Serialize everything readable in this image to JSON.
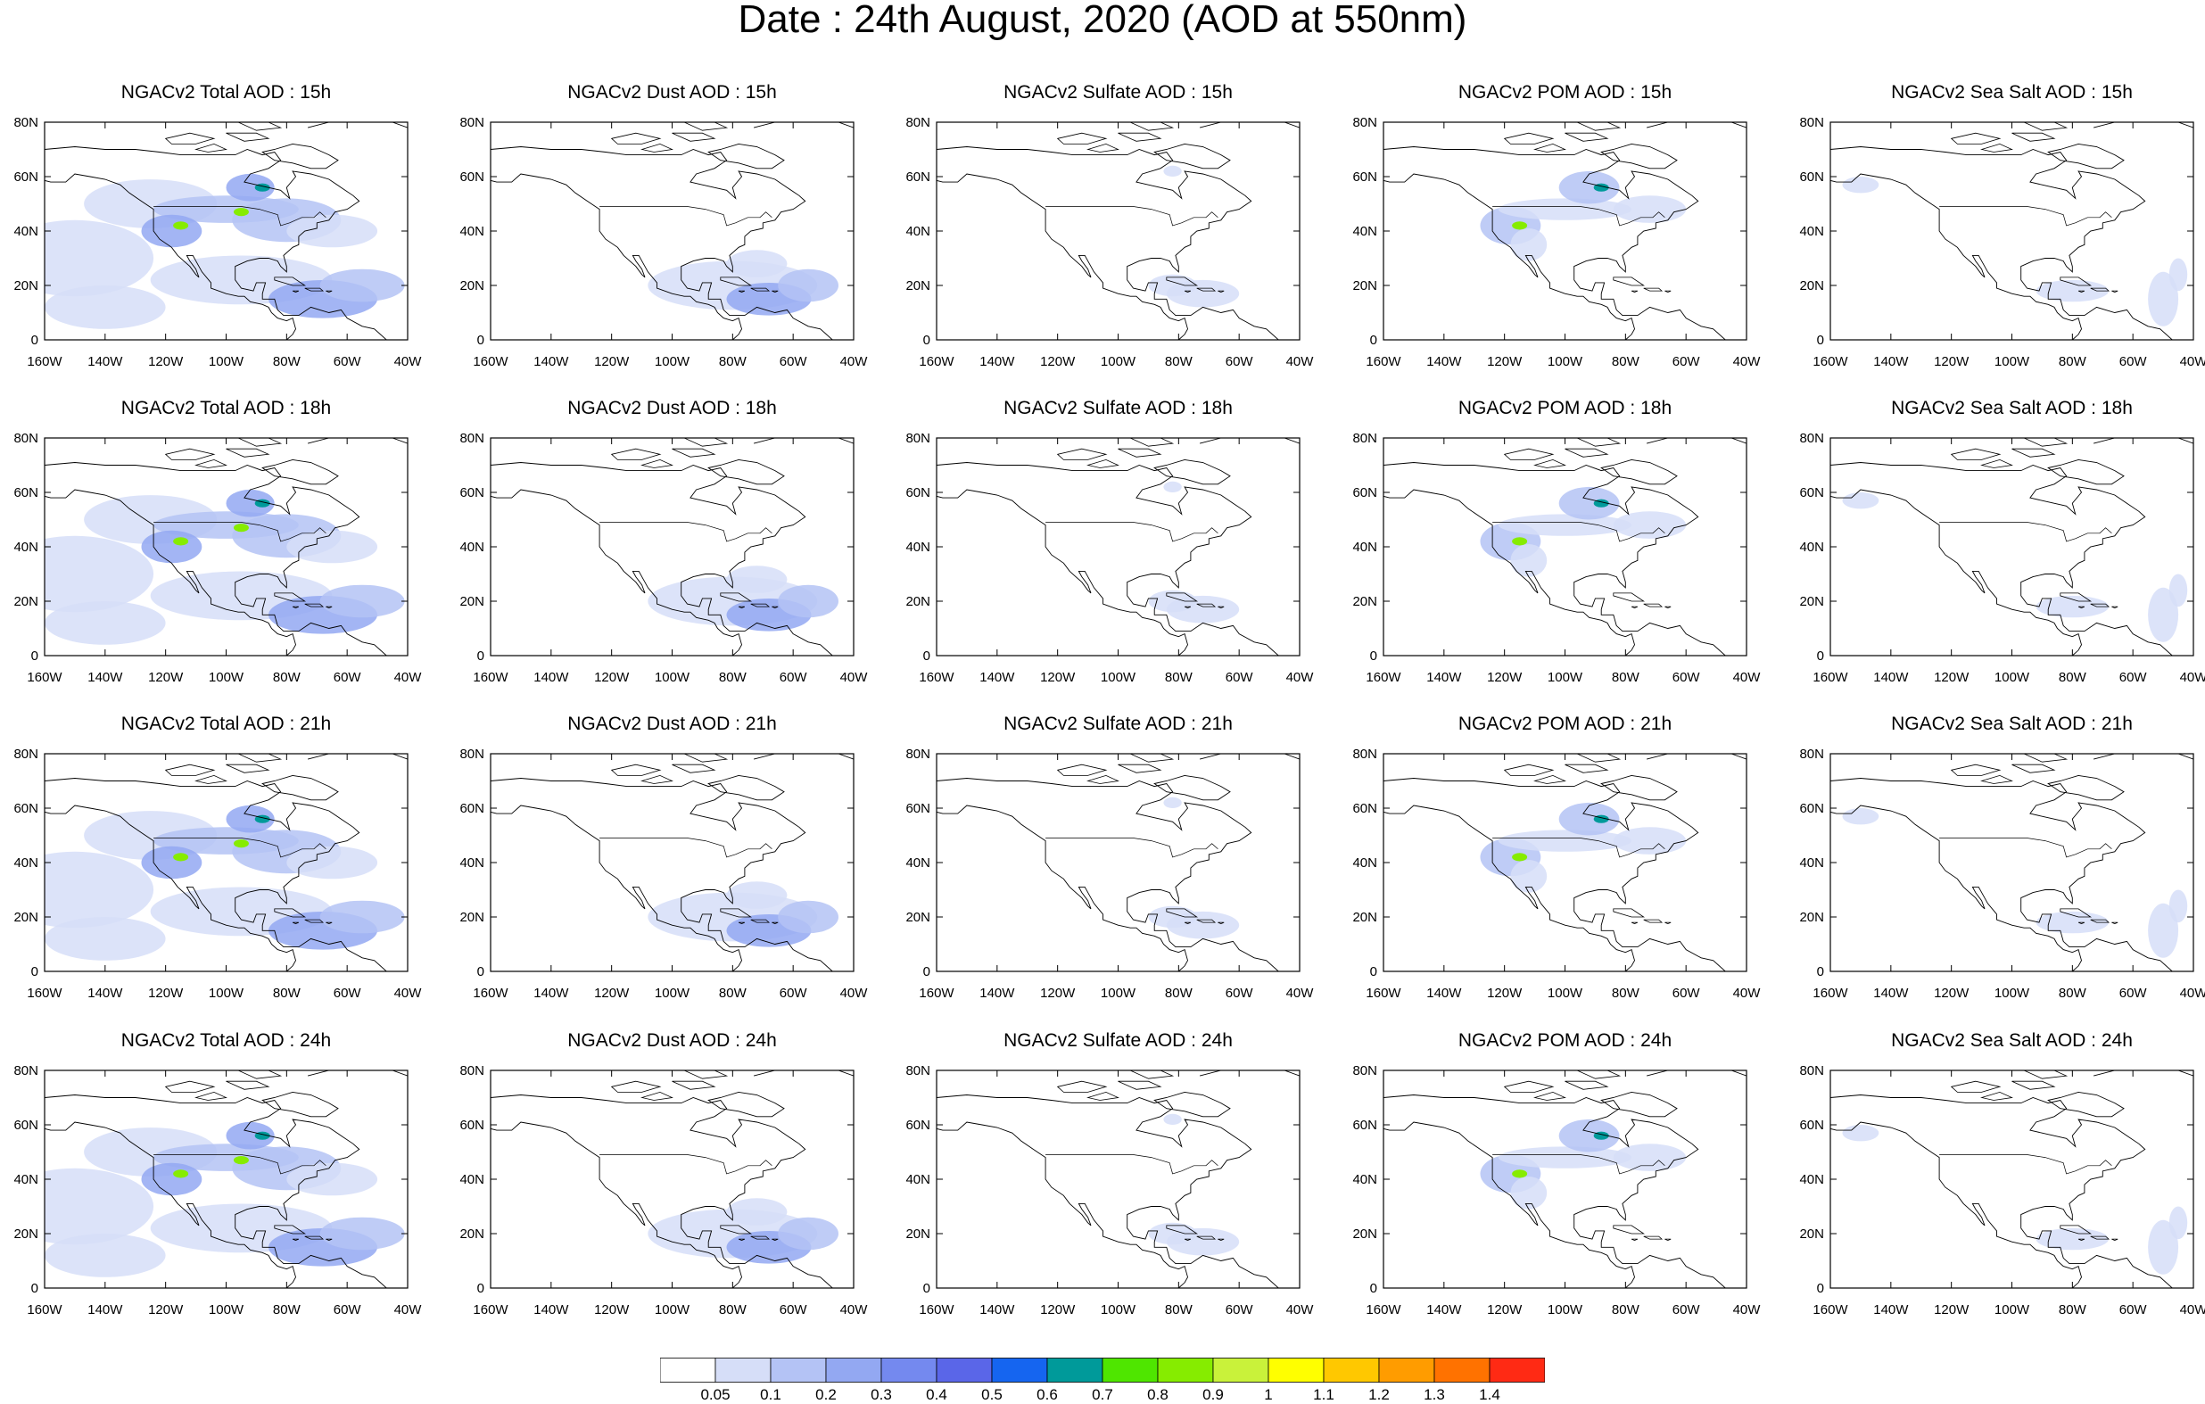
{
  "title": "Date : 24th August, 2020 (AOD at 550nm)",
  "rows": [
    "15h",
    "18h",
    "21h",
    "24h"
  ],
  "columns": [
    {
      "key": "total",
      "prefix": "NGACv2 Total AOD : "
    },
    {
      "key": "dust",
      "prefix": "NGACv2 Dust AOD : "
    },
    {
      "key": "sulfate",
      "prefix": "NGACv2 Sulfate AOD : "
    },
    {
      "key": "pom",
      "prefix": "NGACv2 POM AOD : "
    },
    {
      "key": "seasalt",
      "prefix": "NGACv2 Sea Salt AOD : "
    }
  ],
  "panel_titles": [
    [
      "NGACv2 Total AOD : 15h",
      "NGACv2 Dust AOD : 15h",
      "NGACv2 Sulfate AOD : 15h",
      "NGACv2 POM AOD : 15h",
      "NGACv2 Sea Salt AOD : 15h"
    ],
    [
      "NGACv2 Total AOD : 18h",
      "NGACv2 Dust AOD : 18h",
      "NGACv2 Sulfate AOD : 18h",
      "NGACv2 POM AOD : 18h",
      "NGACv2 Sea Salt AOD : 18h"
    ],
    [
      "NGACv2 Total AOD : 21h",
      "NGACv2 Dust AOD : 21h",
      "NGACv2 Sulfate AOD : 21h",
      "NGACv2 POM AOD : 21h",
      "NGACv2 Sea Salt AOD : 21h"
    ],
    [
      "NGACv2 Total AOD : 24h",
      "NGACv2 Dust AOD : 24h",
      "NGACv2 Sulfate AOD : 24h",
      "NGACv2 POM AOD : 24h",
      "NGACv2 Sea Salt  AOD : 24h"
    ]
  ],
  "lon_ticks": [
    "160W",
    "140W",
    "120W",
    "100W",
    "80W",
    "60W",
    "40W"
  ],
  "lat_ticks": [
    "0",
    "20N",
    "40N",
    "60N",
    "80N"
  ],
  "lon_range": [
    -160,
    -40
  ],
  "lat_range": [
    0,
    80
  ],
  "colorbar": {
    "colors": [
      "#ffffff",
      "#d6def8",
      "#b4c3f5",
      "#93a8f2",
      "#7489ef",
      "#5a66e8",
      "#1565f0",
      "#009a9a",
      "#4fe600",
      "#86ec00",
      "#c9f23a",
      "#ffff00",
      "#ffc800",
      "#ff9c00",
      "#ff7200",
      "#ff2a14"
    ],
    "labels": [
      "0.05",
      "0.1",
      "0.2",
      "0.3",
      "0.4",
      "0.5",
      "0.6",
      "0.7",
      "0.8",
      "0.9",
      "1",
      "1.1",
      "1.2",
      "1.3",
      "1.4"
    ]
  },
  "aerosol_plumes": {
    "total": [
      {
        "lon": -115,
        "lat": 42,
        "r": 2.5,
        "level": 9
      },
      {
        "lon": -95,
        "lat": 47,
        "r": 2.5,
        "level": 9
      },
      {
        "lon": -88,
        "lat": 56,
        "r": 2.5,
        "level": 7
      }
    ]
  }
}
